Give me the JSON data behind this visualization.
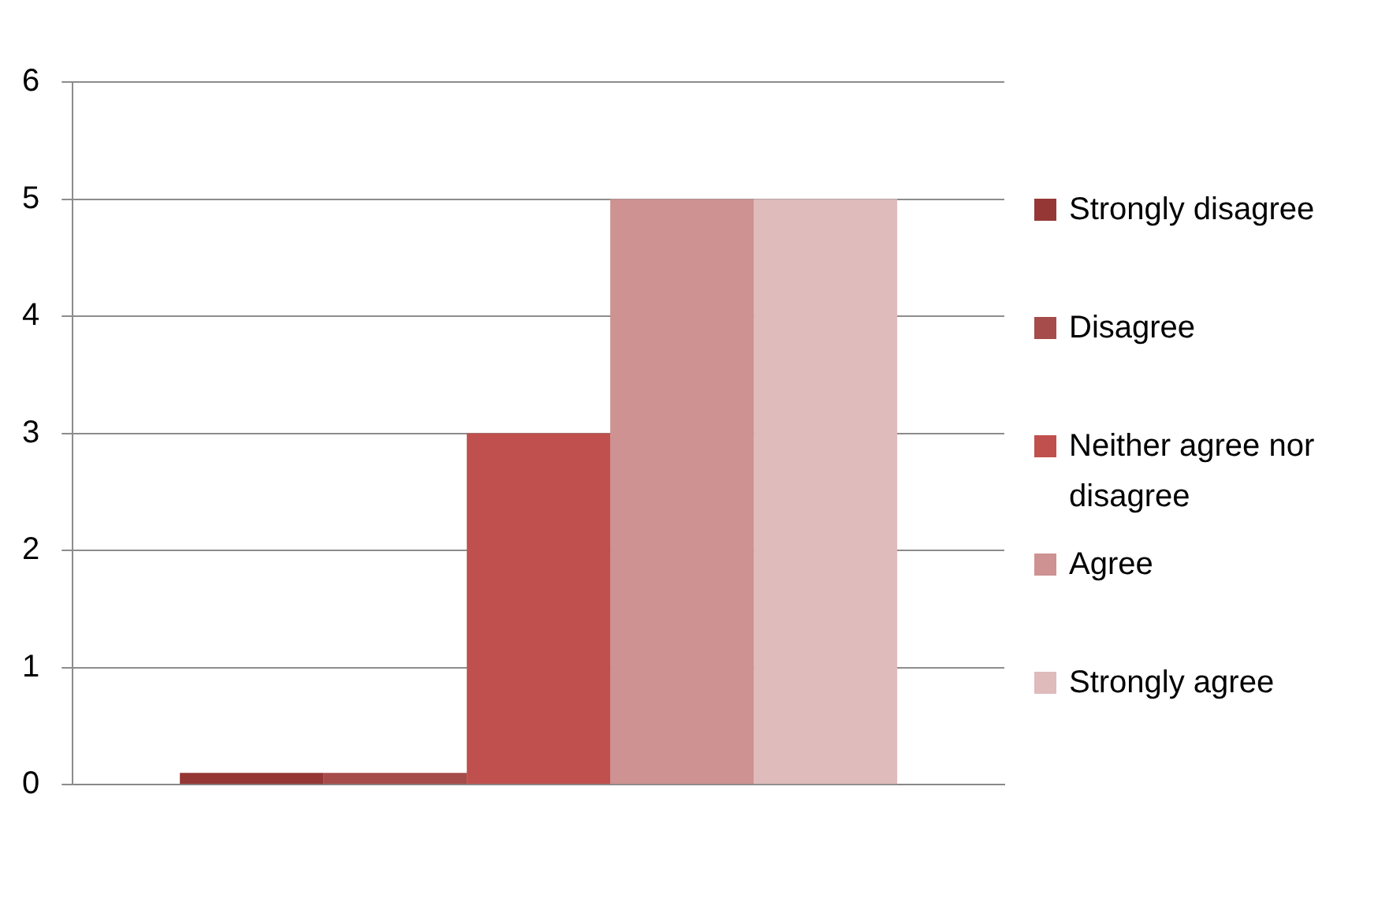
{
  "chart_data": {
    "type": "bar",
    "categories": [
      null
    ],
    "series": [
      {
        "name": "Strongly disagree",
        "color": "#953735",
        "values": [
          0.1
        ]
      },
      {
        "name": "Disagree",
        "color": "#a64c4a",
        "values": [
          0.1
        ]
      },
      {
        "name": "Neither agree nor disagree",
        "color": "#c0504d",
        "values": [
          3
        ]
      },
      {
        "name": "Agree",
        "color": "#cd9291",
        "values": [
          5
        ]
      },
      {
        "name": "Strongly agree",
        "color": "#dfbbbb",
        "values": [
          5
        ]
      }
    ],
    "ylim": [
      0,
      6
    ],
    "yticks": [
      0,
      1,
      2,
      3,
      4,
      5,
      6
    ],
    "grid": "y",
    "legend": "right"
  }
}
